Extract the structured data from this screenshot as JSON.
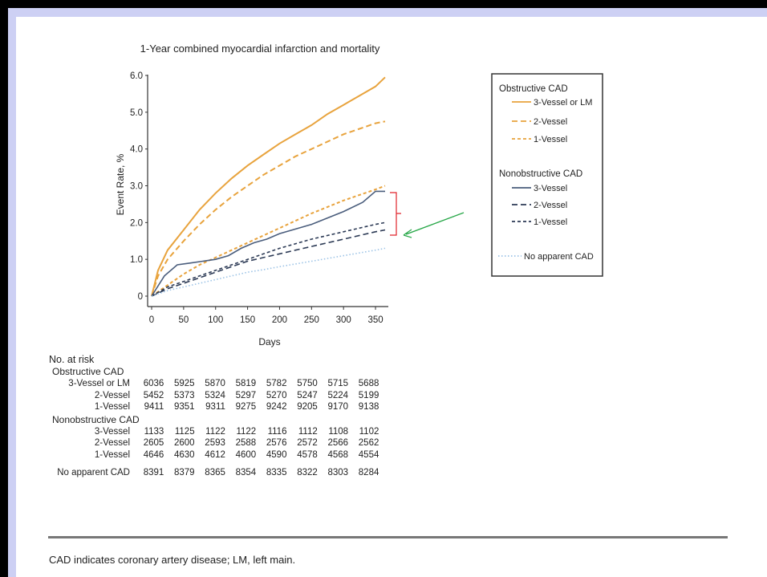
{
  "chart_data": {
    "type": "line",
    "title": "1-Year combined myocardial infarction and mortality",
    "xlabel": "Days",
    "ylabel": "Event Rate, %",
    "xlim": [
      0,
      365
    ],
    "ylim": [
      0,
      6.0
    ],
    "x_ticks": [
      "0",
      "50",
      "100",
      "150",
      "200",
      "250",
      "300",
      "350"
    ],
    "y_ticks": [
      "0",
      "1.0",
      "2.0",
      "3.0",
      "4.0",
      "5.0",
      "6.0"
    ],
    "legend_position": "right",
    "legend_groups": [
      "Obstructive CAD",
      "Nonobstructive CAD"
    ],
    "series": [
      {
        "name": "3-Vessel or LM",
        "group": "Obstructive CAD",
        "color": "#e8a33d",
        "dash": "solid",
        "x": [
          0,
          10,
          25,
          50,
          75,
          100,
          125,
          150,
          175,
          200,
          225,
          250,
          275,
          300,
          325,
          350,
          365
        ],
        "y": [
          0,
          0.7,
          1.25,
          1.8,
          2.35,
          2.8,
          3.2,
          3.55,
          3.85,
          4.15,
          4.4,
          4.65,
          4.95,
          5.2,
          5.45,
          5.7,
          5.95
        ]
      },
      {
        "name": "2-Vessel",
        "group": "Obstructive CAD",
        "color": "#e8a33d",
        "dash": "long",
        "x": [
          0,
          10,
          25,
          50,
          75,
          100,
          125,
          150,
          175,
          200,
          225,
          250,
          275,
          300,
          325,
          350,
          365
        ],
        "y": [
          0,
          0.55,
          1.0,
          1.5,
          1.95,
          2.35,
          2.7,
          3.0,
          3.3,
          3.55,
          3.8,
          4.0,
          4.2,
          4.4,
          4.55,
          4.7,
          4.75
        ]
      },
      {
        "name": "1-Vessel",
        "group": "Obstructive CAD",
        "color": "#e8a33d",
        "dash": "short",
        "x": [
          0,
          25,
          50,
          75,
          100,
          125,
          150,
          175,
          200,
          250,
          300,
          350,
          365
        ],
        "y": [
          0,
          0.3,
          0.6,
          0.85,
          1.05,
          1.25,
          1.45,
          1.65,
          1.85,
          2.25,
          2.6,
          2.9,
          3.0
        ]
      },
      {
        "name": "3-Vessel",
        "group": "Nonobstructive CAD",
        "color": "#4a5d7c",
        "dash": "solid",
        "x": [
          0,
          20,
          40,
          60,
          80,
          100,
          120,
          140,
          160,
          180,
          200,
          250,
          300,
          330,
          350,
          365
        ],
        "y": [
          0,
          0.55,
          0.85,
          0.9,
          0.95,
          1.0,
          1.1,
          1.3,
          1.45,
          1.55,
          1.7,
          1.95,
          2.3,
          2.55,
          2.85,
          2.85
        ]
      },
      {
        "name": "2-Vessel",
        "group": "Nonobstructive CAD",
        "color": "#2c3a55",
        "dash": "long",
        "x": [
          0,
          25,
          50,
          75,
          100,
          125,
          150,
          175,
          200,
          250,
          300,
          350,
          365
        ],
        "y": [
          0,
          0.2,
          0.35,
          0.5,
          0.65,
          0.8,
          0.95,
          1.05,
          1.15,
          1.35,
          1.55,
          1.75,
          1.8
        ]
      },
      {
        "name": "1-Vessel",
        "group": "Nonobstructive CAD",
        "color": "#2c3a55",
        "dash": "short",
        "x": [
          0,
          25,
          50,
          75,
          100,
          125,
          150,
          175,
          200,
          250,
          300,
          350,
          365
        ],
        "y": [
          0,
          0.25,
          0.4,
          0.55,
          0.7,
          0.85,
          1.0,
          1.15,
          1.3,
          1.55,
          1.75,
          1.95,
          2.0
        ]
      },
      {
        "name": "No apparent CAD",
        "group": "",
        "color": "#9cc3e6",
        "dash": "dot",
        "x": [
          0,
          25,
          50,
          75,
          100,
          125,
          150,
          175,
          200,
          250,
          300,
          350,
          365
        ],
        "y": [
          0,
          0.15,
          0.25,
          0.35,
          0.45,
          0.55,
          0.65,
          0.72,
          0.8,
          0.95,
          1.1,
          1.25,
          1.3
        ]
      }
    ]
  },
  "risk_table": {
    "heading": "No. at risk",
    "groups": [
      {
        "name": "Obstructive CAD",
        "rows": [
          {
            "label": "3-Vessel or LM",
            "values": [
              "6036",
              "5925",
              "5870",
              "5819",
              "5782",
              "5750",
              "5715",
              "5688"
            ]
          },
          {
            "label": "2-Vessel",
            "values": [
              "5452",
              "5373",
              "5324",
              "5297",
              "5270",
              "5247",
              "5224",
              "5199"
            ]
          },
          {
            "label": "1-Vessel",
            "values": [
              "9411",
              "9351",
              "9311",
              "9275",
              "9242",
              "9205",
              "9170",
              "9138"
            ]
          }
        ]
      },
      {
        "name": "Nonobstructive CAD",
        "rows": [
          {
            "label": "3-Vessel",
            "values": [
              "1133",
              "1125",
              "1122",
              "1122",
              "1116",
              "1112",
              "1108",
              "1102"
            ]
          },
          {
            "label": "2-Vessel",
            "values": [
              "2605",
              "2600",
              "2593",
              "2588",
              "2576",
              "2572",
              "2566",
              "2562"
            ]
          },
          {
            "label": "1-Vessel",
            "values": [
              "4646",
              "4630",
              "4612",
              "4600",
              "4590",
              "4578",
              "4568",
              "4554"
            ]
          }
        ]
      }
    ],
    "no_cad": {
      "label": "No apparent CAD",
      "values": [
        "8391",
        "8379",
        "8365",
        "8354",
        "8335",
        "8322",
        "8303",
        "8284"
      ]
    }
  },
  "footnote": "CAD indicates coronary artery disease; LM, left main.",
  "annotations": {
    "bracket_color": "#e0232a",
    "arrow_color": "#2aa84a"
  },
  "colors": {
    "background": "#cdd0f4",
    "frame": "#000000"
  }
}
